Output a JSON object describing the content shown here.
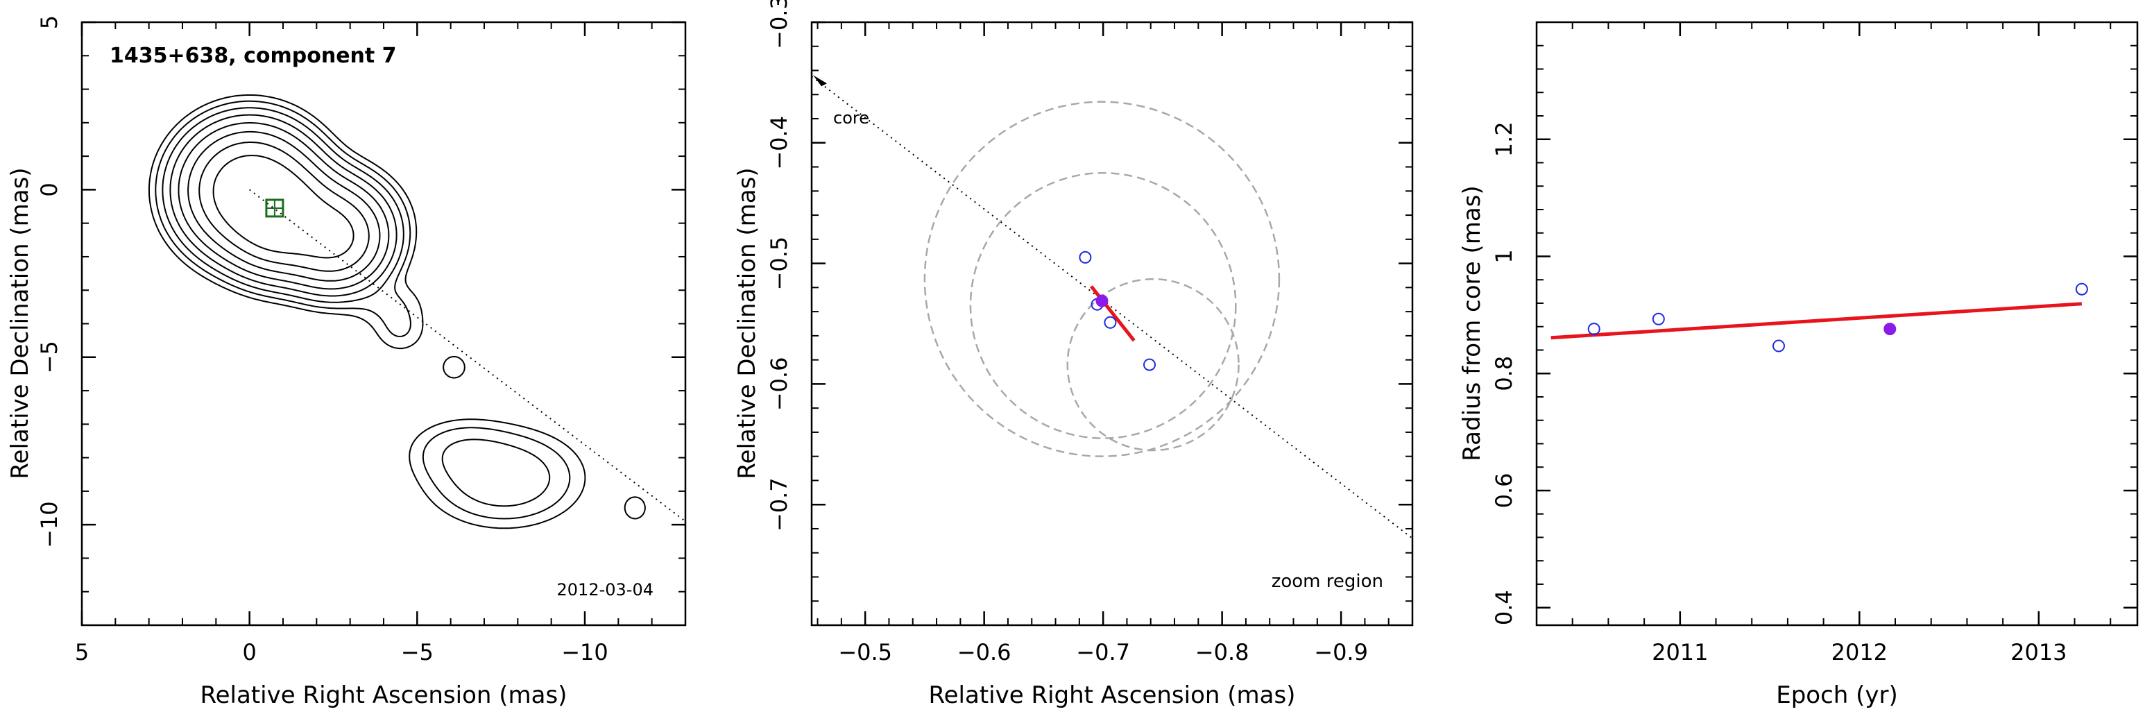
{
  "chart_data": [
    {
      "type": "contour",
      "panel": "vlbi-map",
      "title": "1435+638, component 7",
      "date": "2012-03-04",
      "xlabel": "Relative Right Ascension (mas)",
      "ylabel": "Relative Declination (mas)",
      "xlim": [
        5,
        -13
      ],
      "ylim": [
        -13,
        5
      ],
      "xticks": [
        5,
        0,
        -5,
        -10
      ],
      "yticks": [
        5,
        0,
        -5,
        -10
      ],
      "xticklabels": [
        "5",
        "0",
        "−5",
        "−10"
      ],
      "yticklabels": [
        "5",
        "0",
        "−5",
        "−10"
      ],
      "contour_levels": 8,
      "sources": [
        {
          "x": 0.0,
          "y": 0.0,
          "sx": 0.9,
          "sy": 0.85,
          "amp": 1.0
        },
        {
          "x": -0.9,
          "y": -0.8,
          "sx": 0.75,
          "sy": 0.75,
          "amp": 0.85
        },
        {
          "x": -2.5,
          "y": -1.45,
          "sx": 0.75,
          "sy": 0.7,
          "amp": 0.6
        },
        {
          "x": -1.5,
          "y": -0.9,
          "sx": 1.1,
          "sy": 0.75,
          "amp": 0.25
        },
        {
          "x": -4.1,
          "y": -3.4,
          "sx": 0.7,
          "sy": 0.45,
          "amp": 0.008
        },
        {
          "x": -4.5,
          "y": -4.2,
          "sx": 0.5,
          "sy": 0.45,
          "amp": 0.008
        },
        {
          "x": -6.1,
          "y": -5.3,
          "sx": 0.3,
          "sy": 0.3,
          "amp": 0.007
        },
        {
          "x": -7.6,
          "y": -8.6,
          "sx": 1.2,
          "sy": 0.75,
          "amp": 0.03
        },
        {
          "x": -6.3,
          "y": -7.8,
          "sx": 0.9,
          "sy": 0.55,
          "amp": 0.012
        },
        {
          "x": -11.5,
          "y": -9.5,
          "sx": 0.28,
          "sy": 0.3,
          "amp": 0.007
        }
      ],
      "component_marker": {
        "x": -0.75,
        "y": -0.55,
        "shape": "square",
        "color": "#1a6e1a"
      },
      "jet_axis": {
        "from": [
          0,
          0
        ],
        "to": [
          -13,
          -9.9
        ],
        "style": "dotted"
      }
    },
    {
      "type": "scatter",
      "panel": "zoom-region",
      "label": "zoom region",
      "core_label": "core",
      "xlabel": "Relative Right Ascension (mas)",
      "ylabel": "Relative Declination (mas)",
      "xlim": [
        -0.455,
        -0.96
      ],
      "ylim": [
        -0.8,
        -0.3
      ],
      "xticks": [
        -0.5,
        -0.6,
        -0.7,
        -0.8,
        -0.9
      ],
      "yticks": [
        -0.3,
        -0.4,
        -0.5,
        -0.6,
        -0.7
      ],
      "xticklabels": [
        "−0.5",
        "−0.6",
        "−0.7",
        "−0.8",
        "−0.9"
      ],
      "yticklabels": [
        "−0.3",
        "−0.4",
        "−0.5",
        "−0.6",
        "−0.7"
      ],
      "points": [
        {
          "x": -0.685,
          "y": -0.495,
          "filled": false
        },
        {
          "x": -0.695,
          "y": -0.534,
          "filled": false
        },
        {
          "x": -0.706,
          "y": -0.549,
          "filled": false
        },
        {
          "x": -0.739,
          "y": -0.584,
          "filled": false
        },
        {
          "x": -0.699,
          "y": -0.531,
          "filled": true
        }
      ],
      "error_circles": [
        {
          "x": -0.699,
          "y": -0.513,
          "r": 0.147
        },
        {
          "x": -0.7,
          "y": -0.535,
          "r": 0.11
        },
        {
          "x": -0.742,
          "y": -0.584,
          "r": 0.071
        }
      ],
      "fit_segment": {
        "from": [
          -0.69,
          -0.519
        ],
        "to": [
          -0.726,
          -0.564
        ],
        "color": "#e8141c"
      },
      "jet_axis": {
        "from": [
          -0.455,
          -0.345
        ],
        "to": [
          -0.96,
          -0.728
        ],
        "style": "dotted"
      },
      "point_color": "#1f2ae0",
      "filled_color": "#8a1bea"
    },
    {
      "type": "scatter",
      "panel": "radius-vs-epoch",
      "xlabel": "Epoch (yr)",
      "ylabel": "Radius from core (mas)",
      "xlim": [
        2010.2,
        2013.55
      ],
      "ylim": [
        0.37,
        1.4
      ],
      "xticks": [
        2011,
        2012,
        2013
      ],
      "yticks": [
        0.4,
        0.6,
        0.8,
        1.0,
        1.2
      ],
      "xticklabels": [
        "2011",
        "2012",
        "2013"
      ],
      "yticklabels": [
        "0.4",
        "0.6",
        "0.8",
        "1",
        "1.2"
      ],
      "points": [
        {
          "x": 2010.52,
          "y": 0.876,
          "filled": false
        },
        {
          "x": 2010.88,
          "y": 0.893,
          "filled": false
        },
        {
          "x": 2011.55,
          "y": 0.847,
          "filled": false
        },
        {
          "x": 2012.17,
          "y": 0.876,
          "filled": true
        },
        {
          "x": 2013.24,
          "y": 0.944,
          "filled": false
        }
      ],
      "fit_line": {
        "from": [
          2010.28,
          0.861
        ],
        "to": [
          2013.24,
          0.919
        ],
        "color": "#e8141c"
      },
      "point_color": "#1f2ae0",
      "filled_color": "#8a1bea"
    }
  ]
}
